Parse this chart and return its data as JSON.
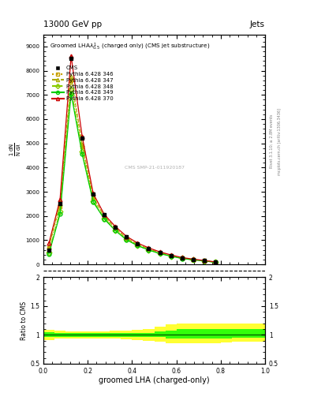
{
  "title_top": "13000 GeV pp",
  "title_right": "Jets",
  "plot_title": "Groomed LHA$\\lambda^1_{0.5}$ (charged only) (CMS jet substructure)",
  "xlabel": "groomed LHA (charged-only)",
  "ylabel_main": "$\\frac{1}{\\mathrm{N}}\\frac{\\mathrm{d}\\mathrm{N}}{\\mathrm{d}\\lambda}$",
  "ylabel_ratio": "Ratio to CMS",
  "watermark": "CMS SMP-21-011920187",
  "right_label1": "Rivet 3.1.10; ≥ 2.8M events",
  "right_label2": "mcplots.cern.ch [arXiv:1306.3436]",
  "x_data": [
    0.025,
    0.075,
    0.125,
    0.175,
    0.225,
    0.275,
    0.325,
    0.375,
    0.425,
    0.475,
    0.525,
    0.575,
    0.625,
    0.675,
    0.725,
    0.775
  ],
  "cms_y": [
    600,
    2500,
    8500,
    5200,
    2900,
    2050,
    1550,
    1150,
    850,
    650,
    490,
    360,
    260,
    210,
    155,
    95
  ],
  "py346_y": [
    680,
    2380,
    7600,
    4850,
    2720,
    1960,
    1460,
    1060,
    800,
    620,
    465,
    355,
    255,
    198,
    150,
    92
  ],
  "py347_y": [
    730,
    2520,
    7750,
    4950,
    2770,
    1990,
    1490,
    1090,
    825,
    638,
    488,
    368,
    262,
    202,
    156,
    95
  ],
  "py348_y": [
    490,
    2180,
    7250,
    4650,
    2620,
    1900,
    1410,
    1030,
    782,
    602,
    452,
    343,
    248,
    190,
    146,
    89
  ],
  "py349_y": [
    440,
    2080,
    7050,
    4550,
    2570,
    1870,
    1390,
    1015,
    772,
    592,
    445,
    338,
    244,
    185,
    143,
    87
  ],
  "py370_y": [
    880,
    2680,
    8600,
    5280,
    2920,
    2060,
    1560,
    1158,
    882,
    682,
    518,
    393,
    283,
    218,
    163,
    103
  ],
  "ratio_x_edges": [
    0.0,
    0.05,
    0.1,
    0.15,
    0.2,
    0.25,
    0.3,
    0.35,
    0.4,
    0.45,
    0.5,
    0.55,
    0.6,
    0.65,
    0.7,
    0.75,
    0.8,
    0.85,
    0.9,
    0.95,
    1.0
  ],
  "ratio_green_lo": [
    0.96,
    0.97,
    0.97,
    0.97,
    0.97,
    0.97,
    0.97,
    0.97,
    0.97,
    0.97,
    0.96,
    0.94,
    0.93,
    0.93,
    0.93,
    0.93,
    0.94,
    0.95,
    0.95,
    0.95
  ],
  "ratio_green_hi": [
    1.04,
    1.03,
    1.03,
    1.03,
    1.03,
    1.03,
    1.03,
    1.03,
    1.03,
    1.03,
    1.06,
    1.08,
    1.1,
    1.1,
    1.1,
    1.1,
    1.1,
    1.1,
    1.1,
    1.1
  ],
  "ratio_yellow_lo": [
    0.91,
    0.93,
    0.94,
    0.94,
    0.94,
    0.94,
    0.93,
    0.92,
    0.91,
    0.9,
    0.88,
    0.86,
    0.85,
    0.85,
    0.85,
    0.85,
    0.87,
    0.88,
    0.88,
    0.88
  ],
  "ratio_yellow_hi": [
    1.09,
    1.07,
    1.06,
    1.06,
    1.06,
    1.06,
    1.07,
    1.08,
    1.09,
    1.1,
    1.14,
    1.18,
    1.2,
    1.2,
    1.2,
    1.2,
    1.2,
    1.2,
    1.2,
    1.2
  ],
  "color_346": "#c8a000",
  "color_347": "#aaaa00",
  "color_348": "#88cc00",
  "color_349": "#00cc00",
  "color_370": "#cc0000",
  "color_cms": "#000000",
  "ylim_main": [
    0,
    9500
  ],
  "ylim_ratio": [
    0.5,
    2.0
  ],
  "xlim": [
    0,
    1
  ]
}
